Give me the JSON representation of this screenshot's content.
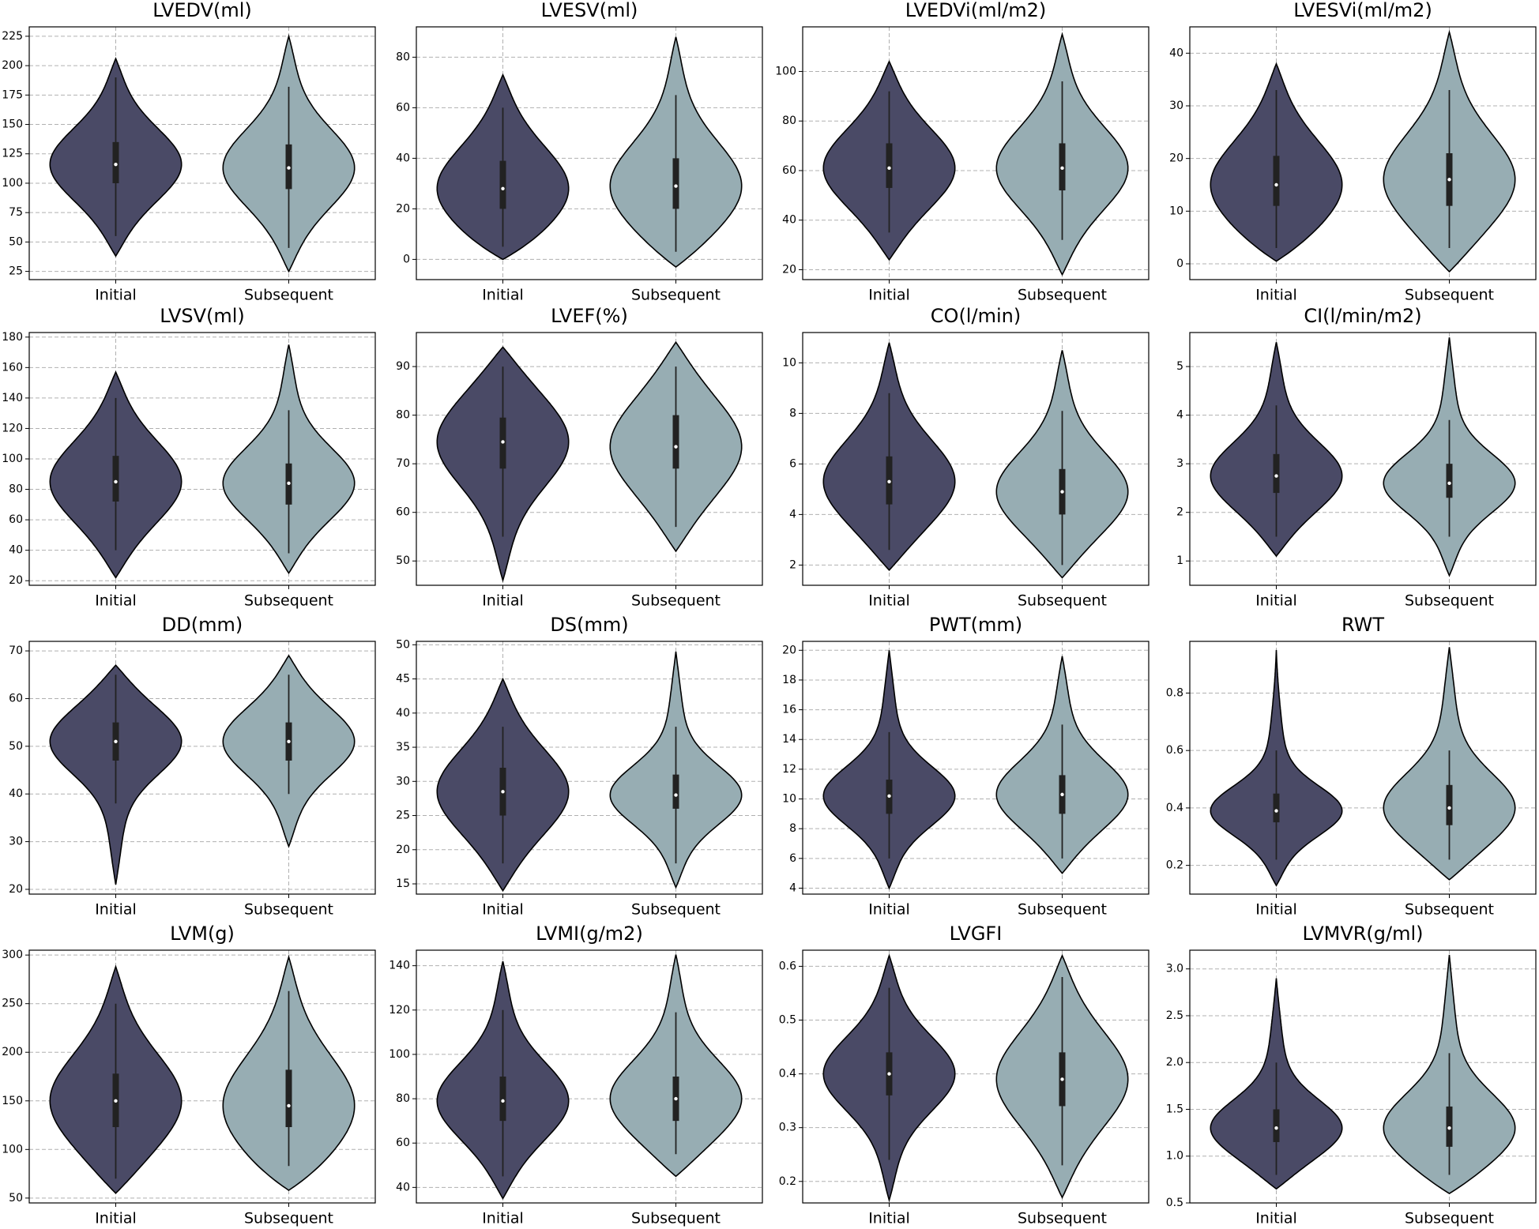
{
  "chart_data": [
    {
      "type": "violin",
      "title": "LVEDV(ml)",
      "categories": [
        "Initial",
        "Subsequent"
      ],
      "ylim": [
        18,
        233
      ],
      "yticks": [
        25,
        50,
        75,
        100,
        125,
        150,
        175,
        200,
        225
      ],
      "grid": true,
      "violins": [
        {
          "color": "#4a4a66",
          "min": 38,
          "whisker_low": 55,
          "q1": 100,
          "median": 116,
          "q3": 135,
          "whisker_high": 190,
          "max": 206
        },
        {
          "color": "#97adb3",
          "min": 25,
          "whisker_low": 45,
          "q1": 95,
          "median": 113,
          "q3": 133,
          "whisker_high": 182,
          "max": 225
        }
      ]
    },
    {
      "type": "violin",
      "title": "LVESV(ml)",
      "categories": [
        "Initial",
        "Subsequent"
      ],
      "ylim": [
        -8,
        92
      ],
      "yticks": [
        0,
        20,
        40,
        60,
        80
      ],
      "grid": true,
      "violins": [
        {
          "color": "#4a4a66",
          "min": 0,
          "whisker_low": 5,
          "q1": 20,
          "median": 28,
          "q3": 39,
          "whisker_high": 60,
          "max": 73
        },
        {
          "color": "#97adb3",
          "min": -3,
          "whisker_low": 3,
          "q1": 20,
          "median": 29,
          "q3": 40,
          "whisker_high": 65,
          "max": 88
        }
      ]
    },
    {
      "type": "violin",
      "title": "LVEDVi(ml/m2)",
      "categories": [
        "Initial",
        "Subsequent"
      ],
      "ylim": [
        16,
        118
      ],
      "yticks": [
        20,
        40,
        60,
        80,
        100
      ],
      "grid": true,
      "violins": [
        {
          "color": "#4a4a66",
          "min": 24,
          "whisker_low": 35,
          "q1": 53,
          "median": 61,
          "q3": 71,
          "whisker_high": 92,
          "max": 104
        },
        {
          "color": "#97adb3",
          "min": 18,
          "whisker_low": 32,
          "q1": 52,
          "median": 61,
          "q3": 71,
          "whisker_high": 96,
          "max": 115
        }
      ]
    },
    {
      "type": "violin",
      "title": "LVESVi(ml/m2)",
      "categories": [
        "Initial",
        "Subsequent"
      ],
      "ylim": [
        -3,
        45
      ],
      "yticks": [
        0,
        10,
        20,
        30,
        40
      ],
      "grid": true,
      "violins": [
        {
          "color": "#4a4a66",
          "min": 0.5,
          "whisker_low": 3,
          "q1": 11,
          "median": 15,
          "q3": 20.5,
          "whisker_high": 33,
          "max": 38
        },
        {
          "color": "#97adb3",
          "min": -1.5,
          "whisker_low": 3,
          "q1": 11,
          "median": 16,
          "q3": 21,
          "whisker_high": 33,
          "max": 44
        }
      ]
    },
    {
      "type": "violin",
      "title": "LVSV(ml)",
      "categories": [
        "Initial",
        "Subsequent"
      ],
      "ylim": [
        17,
        183
      ],
      "yticks": [
        20,
        40,
        60,
        80,
        100,
        120,
        140,
        160,
        180
      ],
      "grid": true,
      "violins": [
        {
          "color": "#4a4a66",
          "min": 22,
          "whisker_low": 40,
          "q1": 72,
          "median": 85,
          "q3": 102,
          "whisker_high": 140,
          "max": 157
        },
        {
          "color": "#97adb3",
          "min": 25,
          "whisker_low": 38,
          "q1": 70,
          "median": 84,
          "q3": 97,
          "whisker_high": 132,
          "max": 175
        }
      ]
    },
    {
      "type": "violin",
      "title": "LVEF(%)",
      "categories": [
        "Initial",
        "Subsequent"
      ],
      "ylim": [
        45,
        97
      ],
      "yticks": [
        50,
        60,
        70,
        80,
        90
      ],
      "grid": true,
      "violins": [
        {
          "color": "#4a4a66",
          "min": 46,
          "whisker_low": 55,
          "q1": 69,
          "median": 74.5,
          "q3": 79.5,
          "whisker_high": 90,
          "max": 94
        },
        {
          "color": "#97adb3",
          "min": 52,
          "whisker_low": 57,
          "q1": 69,
          "median": 73.5,
          "q3": 80,
          "whisker_high": 90,
          "max": 95
        }
      ]
    },
    {
      "type": "violin",
      "title": "CO(l/min)",
      "categories": [
        "Initial",
        "Subsequent"
      ],
      "ylim": [
        1.2,
        11.2
      ],
      "yticks": [
        2,
        4,
        6,
        8,
        10
      ],
      "grid": true,
      "violins": [
        {
          "color": "#4a4a66",
          "min": 1.8,
          "whisker_low": 2.6,
          "q1": 4.4,
          "median": 5.3,
          "q3": 6.3,
          "whisker_high": 8.8,
          "max": 10.8
        },
        {
          "color": "#97adb3",
          "min": 1.5,
          "whisker_low": 2,
          "q1": 4,
          "median": 4.9,
          "q3": 5.8,
          "whisker_high": 8.1,
          "max": 10.5
        }
      ]
    },
    {
      "type": "violin",
      "title": "CI(l/min/m2)",
      "categories": [
        "Initial",
        "Subsequent"
      ],
      "ylim": [
        0.5,
        5.7
      ],
      "yticks": [
        1,
        2,
        3,
        4,
        5
      ],
      "grid": true,
      "violins": [
        {
          "color": "#4a4a66",
          "min": 1.1,
          "whisker_low": 1.5,
          "q1": 2.4,
          "median": 2.75,
          "q3": 3.2,
          "whisker_high": 4.2,
          "max": 5.5
        },
        {
          "color": "#97adb3",
          "min": 0.7,
          "whisker_low": 1.5,
          "q1": 2.3,
          "median": 2.6,
          "q3": 3,
          "whisker_high": 3.9,
          "max": 5.6
        }
      ]
    },
    {
      "type": "violin",
      "title": "DD(mm)",
      "categories": [
        "Initial",
        "Subsequent"
      ],
      "ylim": [
        19,
        72
      ],
      "yticks": [
        20,
        30,
        40,
        50,
        60,
        70
      ],
      "grid": true,
      "violins": [
        {
          "color": "#4a4a66",
          "min": 21,
          "whisker_low": 38,
          "q1": 47,
          "median": 51,
          "q3": 55,
          "whisker_high": 65,
          "max": 67
        },
        {
          "color": "#97adb3",
          "min": 29,
          "whisker_low": 40,
          "q1": 47,
          "median": 51,
          "q3": 55,
          "whisker_high": 65,
          "max": 69
        }
      ]
    },
    {
      "type": "violin",
      "title": "DS(mm)",
      "categories": [
        "Initial",
        "Subsequent"
      ],
      "ylim": [
        13.5,
        50.5
      ],
      "yticks": [
        15,
        20,
        25,
        30,
        35,
        40,
        45,
        50
      ],
      "grid": true,
      "violins": [
        {
          "color": "#4a4a66",
          "min": 14,
          "whisker_low": 18,
          "q1": 25,
          "median": 28.5,
          "q3": 32,
          "whisker_high": 38,
          "max": 45
        },
        {
          "color": "#97adb3",
          "min": 14.5,
          "whisker_low": 18,
          "q1": 26,
          "median": 28,
          "q3": 31,
          "whisker_high": 38,
          "max": 49
        }
      ]
    },
    {
      "type": "violin",
      "title": "PWT(mm)",
      "categories": [
        "Initial",
        "Subsequent"
      ],
      "ylim": [
        3.6,
        20.6
      ],
      "yticks": [
        4,
        6,
        8,
        10,
        12,
        14,
        16,
        18,
        20
      ],
      "grid": true,
      "violins": [
        {
          "color": "#4a4a66",
          "min": 4,
          "whisker_low": 6,
          "q1": 9,
          "median": 10.2,
          "q3": 11.3,
          "whisker_high": 14.5,
          "max": 20
        },
        {
          "color": "#97adb3",
          "min": 5,
          "whisker_low": 6,
          "q1": 9,
          "median": 10.3,
          "q3": 11.6,
          "whisker_high": 15,
          "max": 19.6
        }
      ]
    },
    {
      "type": "violin",
      "title": "RWT",
      "categories": [
        "Initial",
        "Subsequent"
      ],
      "ylim": [
        0.1,
        0.98
      ],
      "yticks": [
        0.2,
        0.4,
        0.6,
        0.8
      ],
      "grid": true,
      "violins": [
        {
          "color": "#4a4a66",
          "min": 0.13,
          "whisker_low": 0.22,
          "q1": 0.35,
          "median": 0.39,
          "q3": 0.45,
          "whisker_high": 0.6,
          "max": 0.95
        },
        {
          "color": "#97adb3",
          "min": 0.15,
          "whisker_low": 0.22,
          "q1": 0.34,
          "median": 0.4,
          "q3": 0.48,
          "whisker_high": 0.6,
          "max": 0.96
        }
      ]
    },
    {
      "type": "violin",
      "title": "LVM(g)",
      "categories": [
        "Initial",
        "Subsequent"
      ],
      "ylim": [
        45,
        305
      ],
      "yticks": [
        50,
        100,
        150,
        200,
        250,
        300
      ],
      "grid": true,
      "violins": [
        {
          "color": "#4a4a66",
          "min": 55,
          "whisker_low": 70,
          "q1": 123,
          "median": 150,
          "q3": 178,
          "whisker_high": 250,
          "max": 288
        },
        {
          "color": "#97adb3",
          "min": 58,
          "whisker_low": 83,
          "q1": 123,
          "median": 145,
          "q3": 182,
          "whisker_high": 263,
          "max": 298
        }
      ]
    },
    {
      "type": "violin",
      "title": "LVMI(g/m2)",
      "categories": [
        "Initial",
        "Subsequent"
      ],
      "ylim": [
        33,
        147
      ],
      "yticks": [
        40,
        60,
        80,
        100,
        120,
        140
      ],
      "grid": true,
      "violins": [
        {
          "color": "#4a4a66",
          "min": 35,
          "whisker_low": 45,
          "q1": 70,
          "median": 79,
          "q3": 90,
          "whisker_high": 120,
          "max": 142
        },
        {
          "color": "#97adb3",
          "min": 45,
          "whisker_low": 55,
          "q1": 70,
          "median": 80,
          "q3": 90,
          "whisker_high": 119,
          "max": 145
        }
      ]
    },
    {
      "type": "violin",
      "title": "LVGFI",
      "categories": [
        "Initial",
        "Subsequent"
      ],
      "ylim": [
        0.16,
        0.63
      ],
      "yticks": [
        0.2,
        0.3,
        0.4,
        0.5,
        0.6
      ],
      "grid": true,
      "violins": [
        {
          "color": "#4a4a66",
          "min": 0.165,
          "whisker_low": 0.24,
          "q1": 0.36,
          "median": 0.4,
          "q3": 0.44,
          "whisker_high": 0.56,
          "max": 0.62
        },
        {
          "color": "#97adb3",
          "min": 0.17,
          "whisker_low": 0.23,
          "q1": 0.34,
          "median": 0.39,
          "q3": 0.44,
          "whisker_high": 0.58,
          "max": 0.62
        }
      ]
    },
    {
      "type": "violin",
      "title": "LVMVR(g/ml)",
      "categories": [
        "Initial",
        "Subsequent"
      ],
      "ylim": [
        0.5,
        3.2
      ],
      "yticks": [
        0.5,
        {
          "value": 1,
          "label": "1.0"
        },
        1.5,
        {
          "value": 2,
          "label": "2.0"
        },
        2.5,
        {
          "value": 3,
          "label": "3.0"
        }
      ],
      "grid": true,
      "violins": [
        {
          "color": "#4a4a66",
          "min": 0.65,
          "whisker_low": 0.8,
          "q1": 1.15,
          "median": 1.3,
          "q3": 1.5,
          "whisker_high": 2,
          "max": 2.9
        },
        {
          "color": "#97adb3",
          "min": 0.6,
          "whisker_low": 0.8,
          "q1": 1.1,
          "median": 1.3,
          "q3": 1.53,
          "whisker_high": 2.1,
          "max": 3.15
        }
      ]
    }
  ]
}
